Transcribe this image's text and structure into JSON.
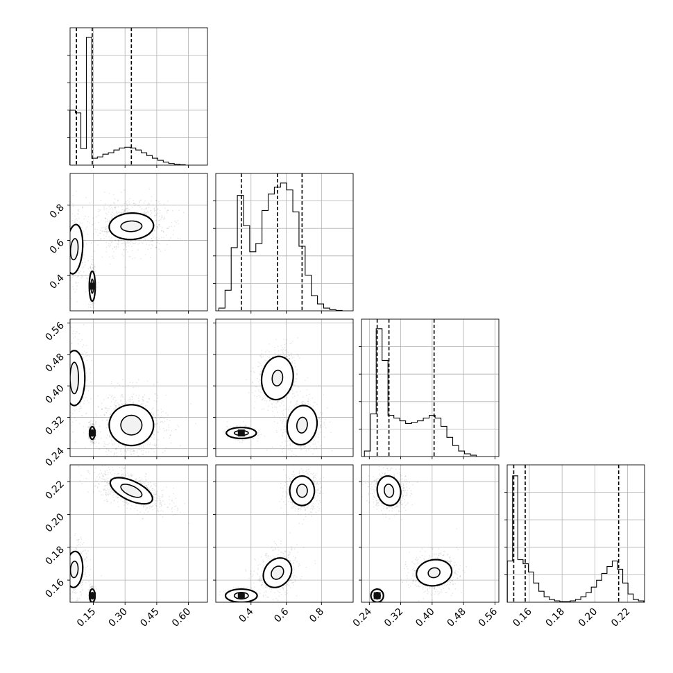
{
  "chart_data": [
    {
      "type": "histogram",
      "panel": "p1-p1",
      "x_ticks": [
        "0.15",
        "0.30",
        "0.45",
        "0.60"
      ],
      "xlim": [
        0.04,
        0.69
      ],
      "bins": [
        {
          "x": 0.052,
          "v": 0.4
        },
        {
          "x": 0.078,
          "v": 0.38
        },
        {
          "x": 0.104,
          "v": 0.12
        },
        {
          "x": 0.13,
          "v": 0.93
        },
        {
          "x": 0.156,
          "v": 0.05
        },
        {
          "x": 0.182,
          "v": 0.06
        },
        {
          "x": 0.208,
          "v": 0.08
        },
        {
          "x": 0.234,
          "v": 0.09
        },
        {
          "x": 0.26,
          "v": 0.11
        },
        {
          "x": 0.286,
          "v": 0.125
        },
        {
          "x": 0.312,
          "v": 0.13
        },
        {
          "x": 0.338,
          "v": 0.125
        },
        {
          "x": 0.364,
          "v": 0.11
        },
        {
          "x": 0.39,
          "v": 0.09
        },
        {
          "x": 0.416,
          "v": 0.07
        },
        {
          "x": 0.442,
          "v": 0.05
        },
        {
          "x": 0.468,
          "v": 0.035
        },
        {
          "x": 0.494,
          "v": 0.022
        },
        {
          "x": 0.52,
          "v": 0.012
        },
        {
          "x": 0.546,
          "v": 0.006
        },
        {
          "x": 0.572,
          "v": 0.003
        }
      ],
      "quantiles": [
        0.07,
        0.145,
        0.33
      ]
    },
    {
      "type": "histogram",
      "panel": "p2-p2",
      "x_ticks": [
        "0.4",
        "0.6",
        "0.8"
      ],
      "xlim": [
        0.2,
        0.98
      ],
      "bins": [
        {
          "x": 0.235,
          "v": 0.02
        },
        {
          "x": 0.27,
          "v": 0.15
        },
        {
          "x": 0.305,
          "v": 0.46
        },
        {
          "x": 0.34,
          "v": 0.84
        },
        {
          "x": 0.375,
          "v": 0.62
        },
        {
          "x": 0.41,
          "v": 0.43
        },
        {
          "x": 0.445,
          "v": 0.49
        },
        {
          "x": 0.48,
          "v": 0.73
        },
        {
          "x": 0.515,
          "v": 0.85
        },
        {
          "x": 0.55,
          "v": 0.9
        },
        {
          "x": 0.585,
          "v": 0.93
        },
        {
          "x": 0.62,
          "v": 0.88
        },
        {
          "x": 0.655,
          "v": 0.72
        },
        {
          "x": 0.69,
          "v": 0.47
        },
        {
          "x": 0.725,
          "v": 0.26
        },
        {
          "x": 0.76,
          "v": 0.11
        },
        {
          "x": 0.795,
          "v": 0.05
        },
        {
          "x": 0.83,
          "v": 0.02
        },
        {
          "x": 0.865,
          "v": 0.008
        },
        {
          "x": 0.9,
          "v": 0.003
        }
      ],
      "quantiles": [
        0.345,
        0.55,
        0.69
      ]
    },
    {
      "type": "histogram",
      "panel": "p3-p3",
      "x_ticks": [
        "0.24",
        "0.32",
        "0.40",
        "0.48",
        "0.56"
      ],
      "xlim": [
        0.22,
        0.57
      ],
      "bins": [
        {
          "x": 0.235,
          "v": 0.04
        },
        {
          "x": 0.25,
          "v": 0.31
        },
        {
          "x": 0.265,
          "v": 0.93
        },
        {
          "x": 0.28,
          "v": 0.7
        },
        {
          "x": 0.295,
          "v": 0.3
        },
        {
          "x": 0.31,
          "v": 0.28
        },
        {
          "x": 0.325,
          "v": 0.26
        },
        {
          "x": 0.34,
          "v": 0.24
        },
        {
          "x": 0.355,
          "v": 0.25
        },
        {
          "x": 0.37,
          "v": 0.26
        },
        {
          "x": 0.385,
          "v": 0.28
        },
        {
          "x": 0.4,
          "v": 0.3
        },
        {
          "x": 0.415,
          "v": 0.28
        },
        {
          "x": 0.43,
          "v": 0.22
        },
        {
          "x": 0.445,
          "v": 0.14
        },
        {
          "x": 0.46,
          "v": 0.08
        },
        {
          "x": 0.475,
          "v": 0.04
        },
        {
          "x": 0.49,
          "v": 0.02
        },
        {
          "x": 0.505,
          "v": 0.01
        }
      ],
      "quantiles": [
        0.26,
        0.29,
        0.405
      ]
    },
    {
      "type": "histogram",
      "panel": "p4-p4",
      "x_ticks": [
        "0.16",
        "0.18",
        "0.20",
        "0.22"
      ],
      "xlim": [
        0.1465,
        0.2303
      ],
      "bins": [
        {
          "x": 0.1482,
          "v": 0.3
        },
        {
          "x": 0.1514,
          "v": 0.92
        },
        {
          "x": 0.1546,
          "v": 0.31
        },
        {
          "x": 0.1578,
          "v": 0.28
        },
        {
          "x": 0.161,
          "v": 0.22
        },
        {
          "x": 0.1642,
          "v": 0.14
        },
        {
          "x": 0.1674,
          "v": 0.08
        },
        {
          "x": 0.1706,
          "v": 0.04
        },
        {
          "x": 0.1738,
          "v": 0.02
        },
        {
          "x": 0.177,
          "v": 0.01
        },
        {
          "x": 0.1802,
          "v": 0.005
        },
        {
          "x": 0.1834,
          "v": 0.005
        },
        {
          "x": 0.1866,
          "v": 0.01
        },
        {
          "x": 0.1898,
          "v": 0.02
        },
        {
          "x": 0.193,
          "v": 0.04
        },
        {
          "x": 0.1962,
          "v": 0.07
        },
        {
          "x": 0.1994,
          "v": 0.11
        },
        {
          "x": 0.2026,
          "v": 0.16
        },
        {
          "x": 0.2058,
          "v": 0.21
        },
        {
          "x": 0.209,
          "v": 0.26
        },
        {
          "x": 0.2122,
          "v": 0.3
        },
        {
          "x": 0.2154,
          "v": 0.24
        },
        {
          "x": 0.2186,
          "v": 0.14
        },
        {
          "x": 0.2218,
          "v": 0.06
        },
        {
          "x": 0.225,
          "v": 0.02
        },
        {
          "x": 0.2282,
          "v": 0.01
        }
      ],
      "quantiles": [
        0.1505,
        0.1575,
        0.2145
      ]
    },
    {
      "type": "scatter",
      "panel": "p2-vs-p1",
      "y_ticks": [
        "0.4",
        "0.6",
        "0.8"
      ],
      "xlim": [
        0.04,
        0.69
      ],
      "ylim": [
        0.2,
        0.98
      ],
      "clusters": [
        {
          "cx": 0.33,
          "cy": 0.68,
          "sx": 0.085,
          "sy": 0.07,
          "rho": 0.05,
          "w": 0.55
        },
        {
          "cx": 0.06,
          "cy": 0.55,
          "sx": 0.03,
          "sy": 0.12,
          "rho": 0.2,
          "w": 0.25
        },
        {
          "cx": 0.145,
          "cy": 0.34,
          "sx": 0.008,
          "sy": 0.06,
          "rho": 0.0,
          "w": 0.2
        }
      ],
      "contours": [
        {
          "cx": 0.33,
          "cy": 0.68,
          "rx": [
            0.05,
            0.105
          ],
          "ry": [
            0.03,
            0.075
          ],
          "rho": 0.05
        },
        {
          "cx": 0.06,
          "cy": 0.55,
          "rx": [
            0.018,
            0.04
          ],
          "ry": [
            0.06,
            0.14
          ],
          "rho": 0.2
        },
        {
          "cx": 0.145,
          "cy": 0.34,
          "rx": [
            0.006,
            0.014
          ],
          "ry": [
            0.04,
            0.085
          ],
          "rho": 0.0
        }
      ],
      "peaks": [
        {
          "x": 0.145,
          "y": 0.34
        }
      ]
    },
    {
      "type": "scatter",
      "panel": "p3-vs-p1",
      "y_ticks": [
        "0.24",
        "0.32",
        "0.40",
        "0.48",
        "0.56"
      ],
      "xlim": [
        0.04,
        0.69
      ],
      "ylim": [
        0.22,
        0.57
      ],
      "clusters": [
        {
          "cx": 0.33,
          "cy": 0.3,
          "sx": 0.085,
          "sy": 0.045,
          "rho": 0.0,
          "w": 0.5
        },
        {
          "cx": 0.06,
          "cy": 0.42,
          "sx": 0.03,
          "sy": 0.05,
          "rho": 0.0,
          "w": 0.3
        },
        {
          "cx": 0.145,
          "cy": 0.28,
          "sx": 0.008,
          "sy": 0.012,
          "rho": 0.0,
          "w": 0.2
        }
      ],
      "contours": [
        {
          "cx": 0.33,
          "cy": 0.3,
          "rx": [
            0.05,
            0.105
          ],
          "ry": [
            0.025,
            0.052
          ],
          "rho": 0.0
        },
        {
          "cx": 0.06,
          "cy": 0.42,
          "rx": [
            0.02,
            0.05
          ],
          "ry": [
            0.04,
            0.07
          ],
          "rho": 0.0
        },
        {
          "cx": 0.145,
          "cy": 0.28,
          "rx": [
            0.006,
            0.012
          ],
          "ry": [
            0.008,
            0.016
          ],
          "rho": 0.0
        }
      ],
      "peaks": [
        {
          "x": 0.145,
          "y": 0.28
        }
      ]
    },
    {
      "type": "scatter",
      "panel": "p3-vs-p2",
      "xlim": [
        0.2,
        0.98
      ],
      "ylim": [
        0.22,
        0.57
      ],
      "clusters": [
        {
          "cx": 0.55,
          "cy": 0.42,
          "sx": 0.06,
          "sy": 0.04,
          "rho": 0.1,
          "w": 0.35
        },
        {
          "cx": 0.69,
          "cy": 0.3,
          "sx": 0.06,
          "sy": 0.035,
          "rho": 0.1,
          "w": 0.35
        },
        {
          "cx": 0.345,
          "cy": 0.28,
          "sx": 0.04,
          "sy": 0.008,
          "rho": 0.0,
          "w": 0.3
        }
      ],
      "contours": [
        {
          "cx": 0.55,
          "cy": 0.42,
          "rx": [
            0.03,
            0.09
          ],
          "ry": [
            0.02,
            0.055
          ],
          "rho": 0.1
        },
        {
          "cx": 0.69,
          "cy": 0.3,
          "rx": [
            0.03,
            0.085
          ],
          "ry": [
            0.02,
            0.05
          ],
          "rho": 0.1
        },
        {
          "cx": 0.345,
          "cy": 0.28,
          "rx": [
            0.04,
            0.085
          ],
          "ry": [
            0.006,
            0.014
          ],
          "rho": 0.0
        }
      ],
      "peaks": [
        {
          "x": 0.345,
          "y": 0.28
        }
      ]
    },
    {
      "type": "scatter",
      "panel": "p4-vs-p1",
      "y_ticks": [
        "0.16",
        "0.18",
        "0.20",
        "0.22"
      ],
      "xlim": [
        0.04,
        0.69
      ],
      "ylim": [
        0.1465,
        0.2303
      ],
      "clusters": [
        {
          "cx": 0.33,
          "cy": 0.2145,
          "sx": 0.085,
          "sy": 0.006,
          "rho": -0.6,
          "w": 0.55
        },
        {
          "cx": 0.06,
          "cy": 0.1665,
          "sx": 0.03,
          "sy": 0.008,
          "rho": 0.1,
          "w": 0.3
        },
        {
          "cx": 0.145,
          "cy": 0.1505,
          "sx": 0.008,
          "sy": 0.003,
          "rho": 0.0,
          "w": 0.15
        }
      ],
      "contours": [
        {
          "cx": 0.33,
          "cy": 0.2145,
          "rx": [
            0.05,
            0.1
          ],
          "ry": [
            0.004,
            0.008
          ],
          "rho": -0.6
        },
        {
          "cx": 0.06,
          "cy": 0.1665,
          "rx": [
            0.018,
            0.04
          ],
          "ry": [
            0.005,
            0.011
          ],
          "rho": 0.1
        },
        {
          "cx": 0.145,
          "cy": 0.1505,
          "rx": [
            0.006,
            0.013
          ],
          "ry": [
            0.002,
            0.004
          ],
          "rho": 0.0
        }
      ],
      "peaks": [
        {
          "x": 0.145,
          "y": 0.1505
        }
      ]
    },
    {
      "type": "scatter",
      "panel": "p4-vs-p2",
      "xlim": [
        0.2,
        0.98
      ],
      "ylim": [
        0.1465,
        0.2303
      ],
      "clusters": [
        {
          "cx": 0.69,
          "cy": 0.2145,
          "sx": 0.05,
          "sy": 0.006,
          "rho": 0.0,
          "w": 0.4
        },
        {
          "cx": 0.55,
          "cy": 0.1645,
          "sx": 0.06,
          "sy": 0.007,
          "rho": 0.2,
          "w": 0.35
        },
        {
          "cx": 0.345,
          "cy": 0.1505,
          "sx": 0.04,
          "sy": 0.002,
          "rho": 0.0,
          "w": 0.25
        }
      ],
      "contours": [
        {
          "cx": 0.69,
          "cy": 0.2145,
          "rx": [
            0.03,
            0.07
          ],
          "ry": [
            0.004,
            0.009
          ],
          "rho": 0.0
        },
        {
          "cx": 0.55,
          "cy": 0.1645,
          "rx": [
            0.035,
            0.08
          ],
          "ry": [
            0.004,
            0.009
          ],
          "rho": 0.2
        },
        {
          "cx": 0.345,
          "cy": 0.1505,
          "rx": [
            0.04,
            0.09
          ],
          "ry": [
            0.002,
            0.004
          ],
          "rho": 0.0
        }
      ],
      "peaks": [
        {
          "x": 0.345,
          "y": 0.1505
        }
      ]
    },
    {
      "type": "scatter",
      "panel": "p4-vs-p3",
      "xlim": [
        0.22,
        0.57
      ],
      "ylim": [
        0.1465,
        0.2303
      ],
      "clusters": [
        {
          "cx": 0.29,
          "cy": 0.2145,
          "sx": 0.022,
          "sy": 0.006,
          "rho": -0.1,
          "w": 0.45
        },
        {
          "cx": 0.405,
          "cy": 0.1645,
          "sx": 0.03,
          "sy": 0.006,
          "rho": 0.1,
          "w": 0.4
        },
        {
          "cx": 0.26,
          "cy": 0.1505,
          "sx": 0.006,
          "sy": 0.002,
          "rho": 0.0,
          "w": 0.15
        }
      ],
      "contours": [
        {
          "cx": 0.29,
          "cy": 0.2145,
          "rx": [
            0.012,
            0.03
          ],
          "ry": [
            0.004,
            0.009
          ],
          "rho": -0.1
        },
        {
          "cx": 0.405,
          "cy": 0.1645,
          "rx": [
            0.015,
            0.045
          ],
          "ry": [
            0.003,
            0.008
          ],
          "rho": 0.1
        },
        {
          "cx": 0.26,
          "cy": 0.1505,
          "rx": [
            0.008,
            0.016
          ],
          "ry": [
            0.002,
            0.004
          ],
          "rho": 0.0
        }
      ],
      "peaks": [
        {
          "x": 0.26,
          "y": 0.1505
        }
      ]
    }
  ]
}
